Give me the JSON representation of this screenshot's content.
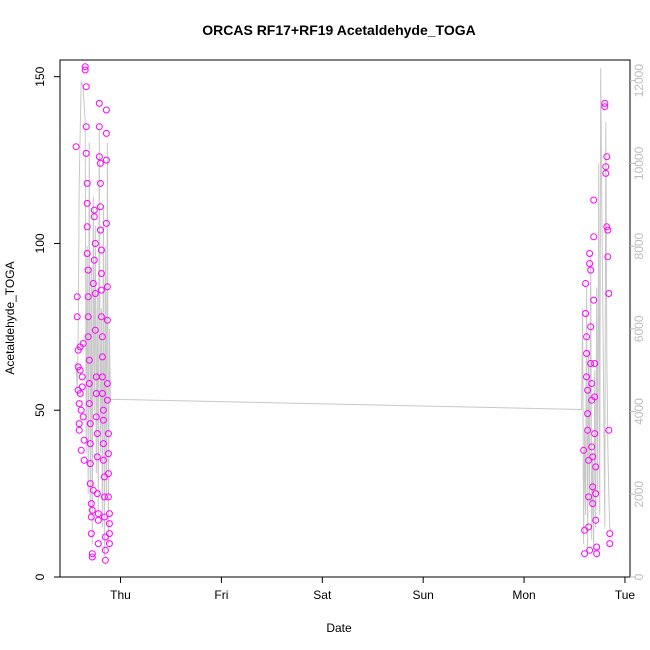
{
  "chart_data": {
    "type": "scatter",
    "title": "ORCAS RF17+RF19 Acetaldehyde_TOGA",
    "xlabel": "Date",
    "ylabel": "Acetaldehyde_TOGA",
    "x_tick_labels": [
      "Thu",
      "Fri",
      "Sat",
      "Sun",
      "Mon",
      "Tue"
    ],
    "y_ticks": [
      0,
      50,
      100,
      150
    ],
    "ylim": [
      0,
      155
    ],
    "y2_ticks": [
      0,
      2000,
      4000,
      6000,
      8000,
      10000,
      12000
    ],
    "y2lim": [
      0,
      12500
    ],
    "xlim_days": [
      -0.6,
      5.05
    ],
    "grid": false,
    "legend": "none",
    "colors": {
      "points": "#ff00ff",
      "line": "#c8c8c8",
      "axis": "#000000",
      "right_axis": "#bdbdbd"
    },
    "series": [
      {
        "role": "scatter",
        "axis": "left",
        "points": [
          [
            -0.44,
            129
          ],
          [
            -0.43,
            84
          ],
          [
            -0.43,
            78
          ],
          [
            -0.42,
            68
          ],
          [
            -0.42,
            63
          ],
          [
            -0.42,
            56
          ],
          [
            -0.41,
            52
          ],
          [
            -0.41,
            46
          ],
          [
            -0.41,
            44
          ],
          [
            -0.4,
            69
          ],
          [
            -0.4,
            62
          ],
          [
            -0.4,
            55
          ],
          [
            -0.39,
            50
          ],
          [
            -0.39,
            38
          ],
          [
            -0.38,
            60
          ],
          [
            -0.38,
            57
          ],
          [
            -0.37,
            70
          ],
          [
            -0.37,
            48
          ],
          [
            -0.36,
            41
          ],
          [
            -0.36,
            35
          ],
          [
            -0.35,
            153
          ],
          [
            -0.35,
            152
          ],
          [
            -0.34,
            147
          ],
          [
            -0.34,
            135
          ],
          [
            -0.34,
            127
          ],
          [
            -0.33,
            118
          ],
          [
            -0.33,
            112
          ],
          [
            -0.33,
            105
          ],
          [
            -0.33,
            97
          ],
          [
            -0.32,
            92
          ],
          [
            -0.32,
            84
          ],
          [
            -0.32,
            78
          ],
          [
            -0.32,
            72
          ],
          [
            -0.31,
            65
          ],
          [
            -0.31,
            58
          ],
          [
            -0.31,
            52
          ],
          [
            -0.3,
            46
          ],
          [
            -0.3,
            40
          ],
          [
            -0.3,
            34
          ],
          [
            -0.3,
            28
          ],
          [
            -0.29,
            22
          ],
          [
            -0.29,
            18
          ],
          [
            -0.29,
            13
          ],
          [
            -0.28,
            7
          ],
          [
            -0.28,
            6
          ],
          [
            -0.28,
            20
          ],
          [
            -0.27,
            26
          ],
          [
            -0.27,
            88
          ],
          [
            -0.26,
            95
          ],
          [
            -0.26,
            108
          ],
          [
            -0.26,
            110
          ],
          [
            -0.25,
            100
          ],
          [
            -0.25,
            85
          ],
          [
            -0.25,
            74
          ],
          [
            -0.24,
            60
          ],
          [
            -0.24,
            55
          ],
          [
            -0.24,
            48
          ],
          [
            -0.23,
            43
          ],
          [
            -0.23,
            36
          ],
          [
            -0.23,
            25
          ],
          [
            -0.22,
            19
          ],
          [
            -0.22,
            17
          ],
          [
            -0.22,
            10
          ],
          [
            -0.21,
            142
          ],
          [
            -0.21,
            135
          ],
          [
            -0.21,
            126
          ],
          [
            -0.2,
            124
          ],
          [
            -0.2,
            118
          ],
          [
            -0.2,
            111
          ],
          [
            -0.2,
            104
          ],
          [
            -0.19,
            98
          ],
          [
            -0.19,
            91
          ],
          [
            -0.19,
            86
          ],
          [
            -0.19,
            78
          ],
          [
            -0.18,
            72
          ],
          [
            -0.18,
            66
          ],
          [
            -0.18,
            60
          ],
          [
            -0.18,
            55
          ],
          [
            -0.17,
            50
          ],
          [
            -0.17,
            47
          ],
          [
            -0.17,
            40
          ],
          [
            -0.17,
            35
          ],
          [
            -0.16,
            30
          ],
          [
            -0.16,
            24
          ],
          [
            -0.16,
            18
          ],
          [
            -0.15,
            12
          ],
          [
            -0.15,
            8
          ],
          [
            -0.15,
            5
          ],
          [
            -0.14,
            140
          ],
          [
            -0.14,
            133
          ],
          [
            -0.14,
            125
          ],
          [
            -0.14,
            106
          ],
          [
            -0.13,
            87
          ],
          [
            -0.13,
            77
          ],
          [
            -0.13,
            58
          ],
          [
            -0.13,
            53
          ],
          [
            -0.12,
            43
          ],
          [
            -0.12,
            37
          ],
          [
            -0.12,
            31
          ],
          [
            -0.12,
            24
          ],
          [
            -0.11,
            19
          ],
          [
            -0.11,
            16
          ],
          [
            -0.11,
            13
          ],
          [
            -0.11,
            10
          ],
          [
            4.59,
            38
          ],
          [
            4.6,
            14
          ],
          [
            4.6,
            7
          ],
          [
            4.61,
            88
          ],
          [
            4.61,
            79
          ],
          [
            4.62,
            72
          ],
          [
            4.62,
            67
          ],
          [
            4.62,
            60
          ],
          [
            4.63,
            56
          ],
          [
            4.63,
            49
          ],
          [
            4.63,
            44
          ],
          [
            4.64,
            35
          ],
          [
            4.64,
            24
          ],
          [
            4.64,
            15
          ],
          [
            4.65,
            8
          ],
          [
            4.65,
            94
          ],
          [
            4.65,
            97
          ],
          [
            4.66,
            92
          ],
          [
            4.66,
            75
          ],
          [
            4.66,
            64
          ],
          [
            4.67,
            58
          ],
          [
            4.67,
            53
          ],
          [
            4.67,
            39
          ],
          [
            4.68,
            36
          ],
          [
            4.68,
            27
          ],
          [
            4.68,
            22
          ],
          [
            4.69,
            113
          ],
          [
            4.69,
            102
          ],
          [
            4.69,
            83
          ],
          [
            4.7,
            64
          ],
          [
            4.7,
            54
          ],
          [
            4.7,
            43
          ],
          [
            4.71,
            33
          ],
          [
            4.71,
            25
          ],
          [
            4.71,
            17
          ],
          [
            4.72,
            9
          ],
          [
            4.72,
            7
          ],
          [
            4.8,
            141
          ],
          [
            4.8,
            142
          ],
          [
            4.81,
            123
          ],
          [
            4.81,
            121
          ],
          [
            4.82,
            126
          ],
          [
            4.82,
            105
          ],
          [
            4.83,
            104
          ],
          [
            4.83,
            96
          ],
          [
            4.84,
            85
          ],
          [
            4.84,
            44
          ],
          [
            4.85,
            13
          ],
          [
            4.85,
            10
          ]
        ]
      },
      {
        "role": "line",
        "axis": "right",
        "points": [
          [
            -0.44,
            5200
          ],
          [
            -0.43,
            4500
          ],
          [
            -0.42,
            5800
          ],
          [
            -0.41,
            9500
          ],
          [
            -0.39,
            12000
          ],
          [
            -0.37,
            11800
          ],
          [
            -0.35,
            11000
          ],
          [
            -0.34,
            3000
          ],
          [
            -0.33,
            8000
          ],
          [
            -0.32,
            2000
          ],
          [
            -0.31,
            10500
          ],
          [
            -0.3,
            1500
          ],
          [
            -0.29,
            7500
          ],
          [
            -0.28,
            800
          ],
          [
            -0.27,
            9200
          ],
          [
            -0.26,
            4000
          ],
          [
            -0.25,
            8500
          ],
          [
            -0.24,
            2500
          ],
          [
            -0.23,
            7000
          ],
          [
            -0.22,
            1500
          ],
          [
            -0.21,
            10800
          ],
          [
            -0.2,
            3000
          ],
          [
            -0.19,
            6500
          ],
          [
            -0.18,
            1200
          ],
          [
            -0.17,
            9000
          ],
          [
            -0.16,
            500
          ],
          [
            -0.15,
            8000
          ],
          [
            -0.14,
            2000
          ],
          [
            -0.13,
            10500
          ],
          [
            -0.12,
            800
          ],
          [
            -0.11,
            6000
          ],
          [
            -0.1,
            4300
          ],
          [
            4.57,
            4050
          ],
          [
            4.58,
            6500
          ],
          [
            4.59,
            800
          ],
          [
            4.6,
            3500
          ],
          [
            4.61,
            1500
          ],
          [
            4.62,
            7000
          ],
          [
            4.63,
            600
          ],
          [
            4.64,
            5500
          ],
          [
            4.65,
            1800
          ],
          [
            4.66,
            7800
          ],
          [
            4.67,
            900
          ],
          [
            4.68,
            3000
          ],
          [
            4.69,
            600
          ],
          [
            4.7,
            5000
          ],
          [
            4.71,
            1200
          ],
          [
            4.72,
            7000
          ],
          [
            4.73,
            2000
          ],
          [
            4.74,
            10000
          ],
          [
            4.75,
            1500
          ],
          [
            4.76,
            12300
          ],
          [
            4.77,
            9000
          ],
          [
            4.79,
            4000
          ],
          [
            4.8,
            1200
          ],
          [
            4.81,
            11000
          ],
          [
            4.82,
            5500
          ],
          [
            4.83,
            3200
          ],
          [
            4.84,
            2000
          ],
          [
            4.85,
            1200
          ],
          [
            4.86,
            1100
          ]
        ]
      }
    ]
  }
}
